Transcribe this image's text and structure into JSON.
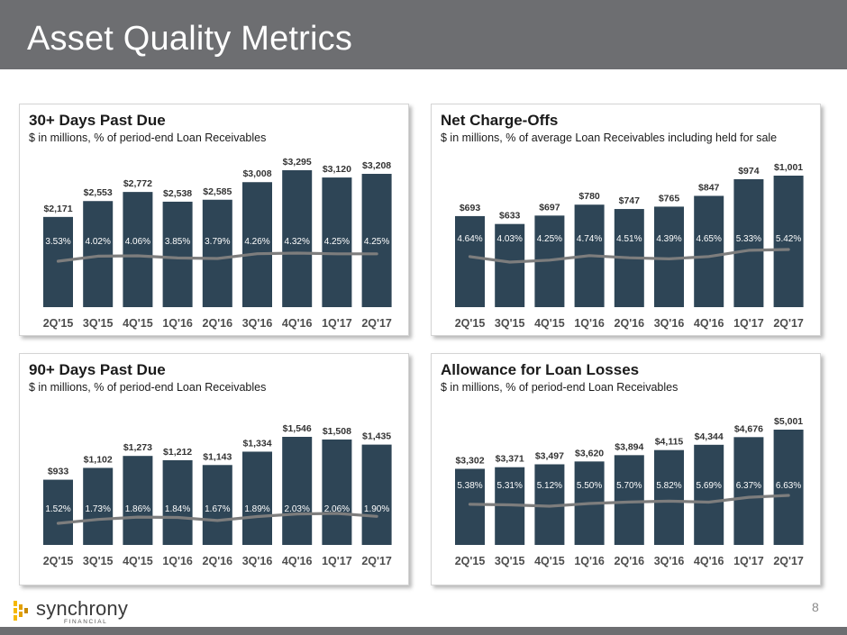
{
  "page": {
    "title": "Asset Quality Metrics",
    "page_number": "8",
    "logo": {
      "name": "synchrony",
      "subtitle": "FINANCIAL"
    }
  },
  "colors": {
    "bar": "#2e4556",
    "trend": "#7d7d7d",
    "header": "#6d6e71"
  },
  "chart_data": [
    {
      "id": "dpd30",
      "type": "bar",
      "title": "30+ Days Past Due",
      "subtitle": "$ in millions, % of period-end Loan Receivables",
      "categories": [
        "2Q'15",
        "3Q'15",
        "4Q'15",
        "1Q'16",
        "2Q'16",
        "3Q'16",
        "4Q'16",
        "1Q'17",
        "2Q'17"
      ],
      "values": [
        2171,
        2553,
        2772,
        2538,
        2585,
        3008,
        3295,
        3120,
        3208
      ],
      "value_labels": [
        "$2,171",
        "$2,553",
        "$2,772",
        "$2,538",
        "$2,585",
        "$3,008",
        "$3,295",
        "$3,120",
        "$3,208"
      ],
      "rates": [
        3.53,
        4.02,
        4.06,
        3.85,
        3.79,
        4.26,
        4.32,
        4.25,
        4.25
      ],
      "rate_labels": [
        "3.53%",
        "4.02%",
        "4.06%",
        "3.85%",
        "3.79%",
        "4.26%",
        "4.32%",
        "4.25%",
        "4.25%"
      ]
    },
    {
      "id": "nco",
      "type": "bar",
      "title": "Net Charge-Offs",
      "subtitle": "$ in millions, % of average Loan Receivables including held for sale",
      "categories": [
        "2Q'15",
        "3Q'15",
        "4Q'15",
        "1Q'16",
        "2Q'16",
        "3Q'16",
        "4Q'16",
        "1Q'17",
        "2Q'17"
      ],
      "values": [
        693,
        633,
        697,
        780,
        747,
        765,
        847,
        974,
        1001
      ],
      "value_labels": [
        "$693",
        "$633",
        "$697",
        "$780",
        "$747",
        "$765",
        "$847",
        "$974",
        "$1,001"
      ],
      "rates": [
        4.64,
        4.03,
        4.25,
        4.74,
        4.51,
        4.39,
        4.65,
        5.33,
        5.42
      ],
      "rate_labels": [
        "4.64%",
        "4.03%",
        "4.25%",
        "4.74%",
        "4.51%",
        "4.39%",
        "4.65%",
        "5.33%",
        "5.42%"
      ]
    },
    {
      "id": "dpd90",
      "type": "bar",
      "title": "90+ Days Past Due",
      "subtitle": "$ in millions, % of period-end Loan Receivables",
      "categories": [
        "2Q'15",
        "3Q'15",
        "4Q'15",
        "1Q'16",
        "2Q'16",
        "3Q'16",
        "4Q'16",
        "1Q'17",
        "2Q'17"
      ],
      "values": [
        933,
        1102,
        1273,
        1212,
        1143,
        1334,
        1546,
        1508,
        1435
      ],
      "value_labels": [
        "$933",
        "$1,102",
        "$1,273",
        "$1,212",
        "$1,143",
        "$1,334",
        "$1,546",
        "$1,508",
        "$1,435"
      ],
      "rates": [
        1.52,
        1.73,
        1.86,
        1.84,
        1.67,
        1.89,
        2.03,
        2.06,
        1.9
      ],
      "rate_labels": [
        "1.52%",
        "1.73%",
        "1.86%",
        "1.84%",
        "1.67%",
        "1.89%",
        "2.03%",
        "2.06%",
        "1.90%"
      ]
    },
    {
      "id": "all",
      "type": "bar",
      "title": "Allowance for Loan Losses",
      "subtitle": "$ in millions, % of period-end Loan Receivables",
      "categories": [
        "2Q'15",
        "3Q'15",
        "4Q'15",
        "1Q'16",
        "2Q'16",
        "3Q'16",
        "4Q'16",
        "1Q'17",
        "2Q'17"
      ],
      "values": [
        3302,
        3371,
        3497,
        3620,
        3894,
        4115,
        4344,
        4676,
        5001
      ],
      "value_labels": [
        "$3,302",
        "$3,371",
        "$3,497",
        "$3,620",
        "$3,894",
        "$4,115",
        "$4,344",
        "$4,676",
        "$5,001"
      ],
      "rates": [
        5.38,
        5.31,
        5.12,
        5.5,
        5.7,
        5.82,
        5.69,
        6.37,
        6.63
      ],
      "rate_labels": [
        "5.38%",
        "5.31%",
        "5.12%",
        "5.50%",
        "5.70%",
        "5.82%",
        "5.69%",
        "6.37%",
        "6.63%"
      ]
    }
  ]
}
